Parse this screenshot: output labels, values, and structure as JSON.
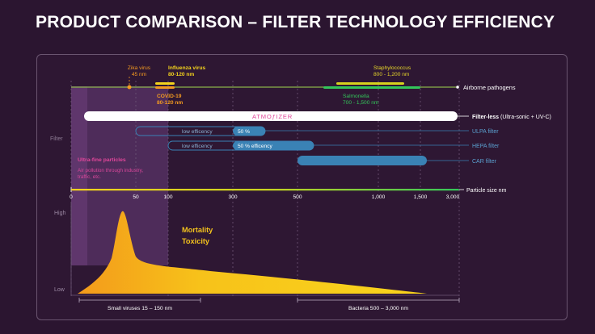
{
  "title": "PRODUCT COMPARISON – FILTER TECHNOLOGY EFFICIENCY",
  "colors": {
    "background": "#2b1530",
    "panel": "#2e1733",
    "yellow": "#f3d21d",
    "green": "#33c65a",
    "orange": "#f39a21",
    "blue": "#3a82b5",
    "pink": "#e0469a",
    "purple": "#5a3468"
  },
  "pathogens": {
    "zika": {
      "name": "Zika virus",
      "size": "45 nm"
    },
    "influenza": {
      "name": "Influenza virus",
      "size": "80-120 nm"
    },
    "covid": {
      "name": "COVID-19",
      "size": "80-120 nm"
    },
    "staph": {
      "name": "Staphylococcus",
      "size": "800 - 1,200 nm"
    },
    "salmonella": {
      "name": "Salmonella",
      "size": "700 - 1,500 nm"
    },
    "row_label": "Airborne pathogens"
  },
  "filters": {
    "side_label": "Filter",
    "atmo": {
      "brand": "ATMOƒIZER",
      "label_bold": "Filter-less",
      "label_rest": " (Ultra-sonic + UV-C)"
    },
    "ulpa": {
      "left_text": "low efficency",
      "bar_text": "50 %",
      "label": "ULPA filter"
    },
    "hepa": {
      "left_text": "low efficency",
      "bar_text": "50 % efficency",
      "label": "HEPA filter"
    },
    "car": {
      "label": "CAR filter"
    }
  },
  "ultrafine": {
    "title": "Ultra-fine particles",
    "desc": [
      "Air pollution through industry,",
      "traffic, etc."
    ]
  },
  "axis": {
    "label": "Particle size nm",
    "ticks": [
      "0",
      "50",
      "100",
      "300",
      "500",
      "1,000",
      "1,500",
      "3,000"
    ]
  },
  "chart": {
    "high": "High",
    "low": "Low",
    "legend": [
      "Mortality",
      "Toxicity"
    ],
    "small_viruses": "Small viruses 15 – 150 nm",
    "bacteria": "Bacteria 500 – 3,000 nm"
  }
}
